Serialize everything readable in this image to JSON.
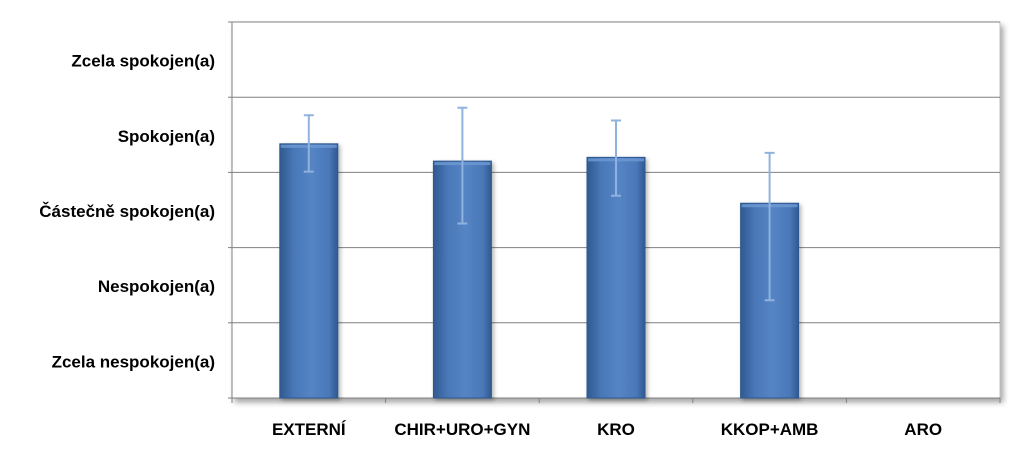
{
  "chart_data": {
    "type": "bar",
    "categories": [
      "EXTERNÍ",
      "CHIR+URO+GYN",
      "KRO",
      "KKOP+AMB",
      "ARO"
    ],
    "values": [
      4.38,
      4.15,
      4.2,
      3.59,
      null
    ],
    "error_bars": {
      "upper": [
        4.76,
        4.86,
        4.69,
        4.26,
        null
      ],
      "lower": [
        4.01,
        3.32,
        3.69,
        2.3,
        null
      ]
    },
    "ytick_labels": [
      "Zcela nespokojen(a)",
      "Nespokojen(a)",
      "Částečně spokojen(a)",
      "Spokojen(a)",
      "Zcela spokojen(a)"
    ],
    "ylim": [
      1,
      6
    ],
    "grid": true,
    "legend": "none",
    "title": "",
    "xlabel": "",
    "ylabel": ""
  },
  "colors": {
    "bar_fill": "#4a78b8",
    "bar_light": "#6e9ad4",
    "bar_dark": "#2f5990",
    "gridline": "#808080",
    "error_bar": "#8fb2de",
    "plot_border": "#bfbfbf"
  }
}
